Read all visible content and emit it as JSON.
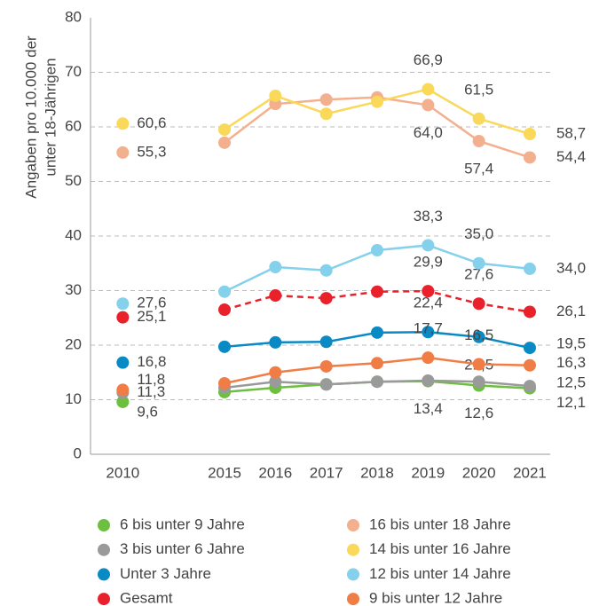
{
  "chart_data": {
    "type": "line",
    "ylabel": [
      "Angaben pro 10.000 der",
      "unter 18-Jährigen"
    ],
    "categories": [
      "2010",
      null,
      "2015",
      "2016",
      "2017",
      "2018",
      "2019",
      "2020",
      "2021"
    ],
    "ylim": [
      0,
      80
    ],
    "yticks": [
      0,
      10,
      20,
      30,
      40,
      50,
      60,
      70,
      80
    ],
    "grid": true,
    "series": [
      {
        "name": "6 bis unter 9 Jahre",
        "color": "#6cbf3f",
        "values": [
          9.6,
          null,
          11.4,
          12.2,
          12.8,
          13.3,
          13.4,
          12.6,
          12.1
        ],
        "value_labels": [
          "9,6",
          null,
          null,
          null,
          null,
          null,
          "13,4",
          "12,6",
          "12,1"
        ]
      },
      {
        "name": "3 bis unter 6 Jahre",
        "color": "#9a9a9a",
        "values": [
          11.3,
          null,
          12.2,
          13.3,
          12.8,
          13.3,
          13.5,
          13.3,
          12.5
        ],
        "value_labels": [
          "11,3",
          null,
          null,
          null,
          null,
          null,
          null,
          null,
          "12,5"
        ]
      },
      {
        "name": "Unter 3 Jahre",
        "color": "#0a8ac4",
        "values": [
          16.8,
          null,
          19.7,
          20.5,
          20.6,
          22.3,
          22.4,
          21.5,
          19.5
        ],
        "value_labels": [
          "16,8",
          null,
          null,
          null,
          null,
          null,
          "22,4",
          "21,5",
          "19,5"
        ]
      },
      {
        "name": "Gesamt",
        "color": "#e8212b",
        "dashed": true,
        "values": [
          25.1,
          null,
          26.5,
          29.1,
          28.6,
          29.8,
          29.9,
          27.6,
          26.1
        ],
        "value_labels": [
          "25,1",
          null,
          null,
          null,
          null,
          null,
          "29,9",
          "27,6",
          "26,1"
        ]
      },
      {
        "name": "16 bis unter 18 Jahre",
        "color": "#f2b08e",
        "values": [
          55.3,
          null,
          57.1,
          64.2,
          65.0,
          65.4,
          64.0,
          57.4,
          54.4
        ],
        "value_labels": [
          "55,3",
          null,
          null,
          null,
          null,
          null,
          "64,0",
          "57,4",
          "54,4"
        ]
      },
      {
        "name": "14 bis unter 16 Jahre",
        "color": "#f9d85a",
        "values": [
          60.6,
          null,
          59.5,
          65.7,
          62.4,
          64.6,
          66.9,
          61.5,
          58.7
        ],
        "value_labels": [
          "60,6",
          null,
          null,
          null,
          null,
          null,
          "66,9",
          "61,5",
          "58,7"
        ]
      },
      {
        "name": "12 bis unter 14 Jahre",
        "color": "#85d0ea",
        "values": [
          27.6,
          null,
          29.8,
          34.3,
          33.7,
          37.4,
          38.3,
          35.0,
          34.0
        ],
        "value_labels": [
          "27,6",
          null,
          null,
          null,
          null,
          null,
          "38,3",
          "35,0",
          "34,0"
        ]
      },
      {
        "name": "9 bis unter 12 Jahre",
        "color": "#f07d45",
        "values": [
          11.8,
          null,
          13.0,
          15.0,
          16.1,
          16.7,
          17.7,
          16.5,
          16.3
        ],
        "value_labels": [
          "11,8",
          null,
          null,
          null,
          null,
          null,
          "17,7",
          "16,5",
          "16,3"
        ]
      }
    ]
  }
}
